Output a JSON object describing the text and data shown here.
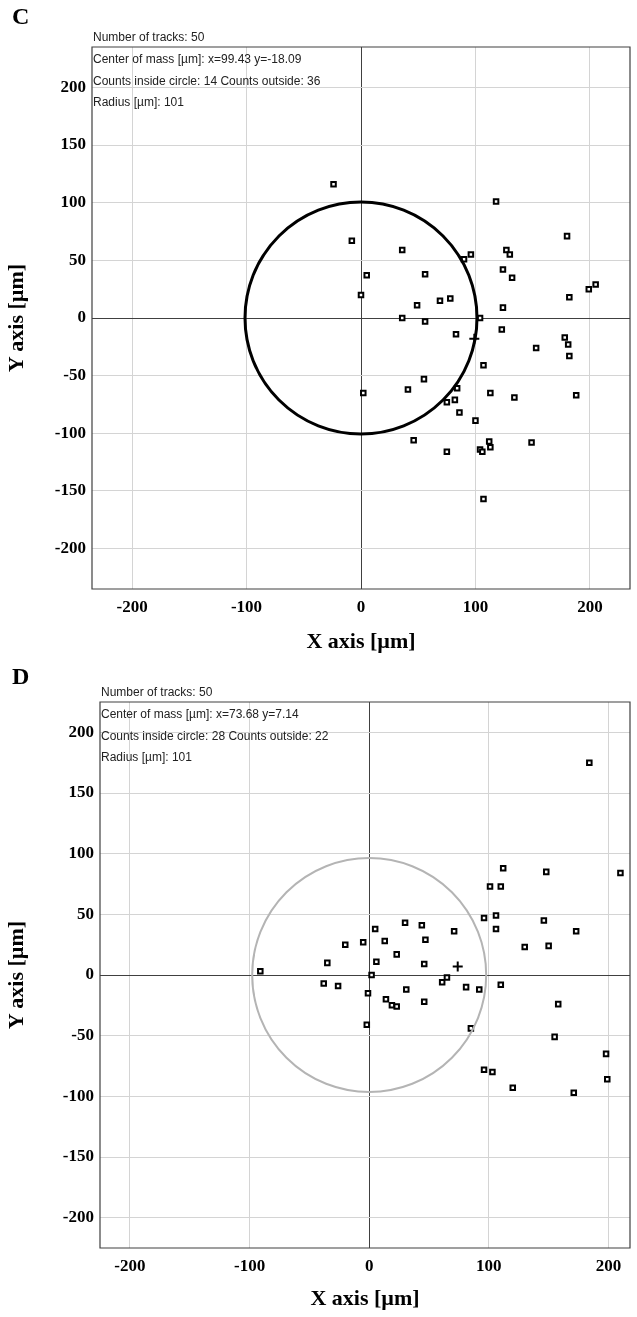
{
  "chart_data": [
    {
      "type": "scatter",
      "title": "C",
      "xlabel": "X axis [µm]",
      "ylabel": "Y axis [µm]",
      "annotations": [
        "Number of tracks: 50",
        "Center of mass [µm]: x=99.43 y=-18.09",
        "Counts inside circle: 14 Counts outside: 36",
        "Radius [µm]: 101"
      ],
      "xlim": [
        -235,
        235
      ],
      "ylim": [
        -235,
        235
      ],
      "xticks": [
        -200,
        -100,
        0,
        100,
        200
      ],
      "yticks": [
        -200,
        -150,
        -100,
        -50,
        0,
        50,
        100,
        150,
        200
      ],
      "grid": true,
      "legend": false,
      "series": [
        {
          "type": "scatter",
          "color": "#000000",
          "marker": "square",
          "x": [
            -24,
            -8,
            0,
            5,
            36,
            49,
            56,
            69,
            78,
            90,
            96,
            118,
            127,
            130,
            124,
            132,
            124,
            180,
            182,
            199,
            205,
            36,
            56,
            104,
            83,
            123,
            153,
            178,
            181,
            182,
            107,
            55,
            41,
            2,
            84,
            82,
            75,
            113,
            134,
            188,
            86,
            100,
            46,
            75,
            104,
            106,
            112,
            113,
            149,
            107
          ],
          "values": [
            116,
            67,
            20,
            37,
            59,
            11,
            38,
            15,
            17,
            51,
            55,
            101,
            59,
            55,
            42,
            35,
            9,
            71,
            18,
            25,
            29,
            0,
            -3,
            0,
            -14,
            -10,
            -26,
            -17,
            -23,
            -33,
            -41,
            -53,
            -62,
            -65,
            -61,
            -71,
            -73,
            -65,
            -69,
            -67,
            -82,
            -89,
            -106,
            -116,
            -114,
            -116,
            -107,
            -112,
            -108,
            -157
          ]
        },
        {
          "type": "scatter",
          "color": "#000000",
          "marker": "cross",
          "x": [
            99
          ],
          "values": [
            -18
          ]
        }
      ]
    },
    {
      "type": "scatter",
      "title": "D",
      "xlabel": "X axis [µm]",
      "ylabel": "Y axis [µm]",
      "annotations": [
        "Number of tracks: 50",
        "Center of mass [µm]: x=73.68 y=7.14",
        "Counts inside circle: 28 Counts outside: 22",
        "Radius [µm]: 101"
      ],
      "xlim": [
        -225,
        218
      ],
      "ylim": [
        -225,
        225
      ],
      "xticks": [
        -200,
        -100,
        0,
        100,
        200
      ],
      "yticks": [
        -200,
        -150,
        -100,
        -50,
        0,
        50,
        100,
        150,
        200
      ],
      "grid": true,
      "legend": false,
      "series": [
        {
          "type": "scatter",
          "color": "#000000",
          "marker": "square",
          "x": [
            184,
            112,
            148,
            210,
            101,
            110,
            96,
            106,
            106,
            146,
            173,
            130,
            150,
            30,
            44,
            5,
            71,
            13,
            47,
            -20,
            -5,
            23,
            -35,
            6,
            46,
            -91,
            2,
            -38,
            -26,
            -1,
            31,
            14,
            19,
            23,
            46,
            -2,
            61,
            65,
            81,
            92,
            110,
            85,
            158,
            155,
            96,
            103,
            120,
            171,
            198,
            199
          ],
          "values": [
            175,
            88,
            85,
            84,
            73,
            73,
            47,
            49,
            38,
            45,
            36,
            23,
            24,
            43,
            41,
            38,
            36,
            28,
            29,
            25,
            27,
            17,
            10,
            11,
            9,
            3,
            0,
            -7,
            -9,
            -15,
            -12,
            -20,
            -25,
            -26,
            -22,
            -41,
            -6,
            -2,
            -10,
            -12,
            -8,
            -44,
            -24,
            -51,
            -78,
            -80,
            -93,
            -97,
            -65,
            -86
          ]
        },
        {
          "type": "scatter",
          "color": "#000000",
          "marker": "cross",
          "x": [
            74
          ],
          "values": [
            7
          ]
        }
      ]
    }
  ]
}
